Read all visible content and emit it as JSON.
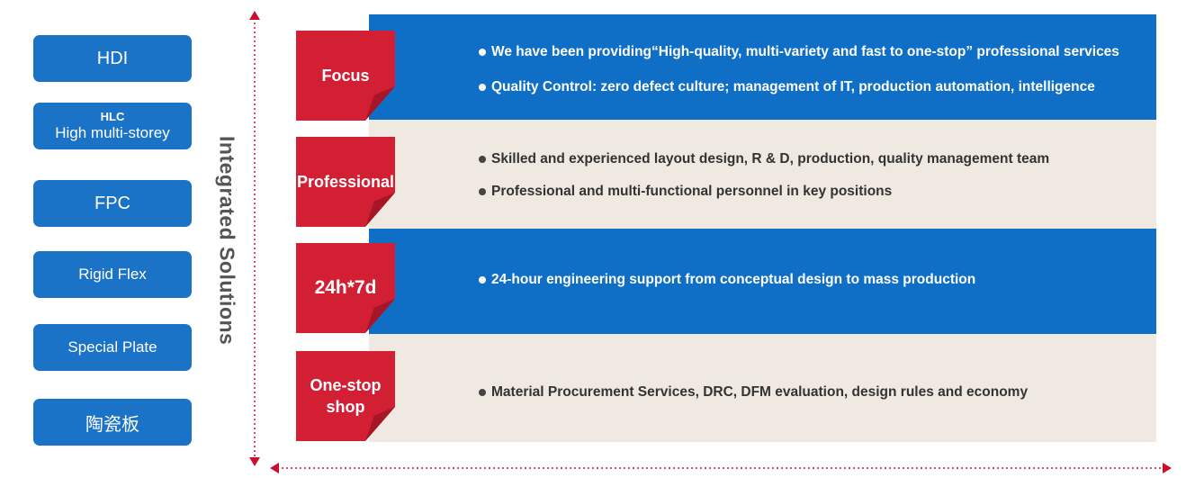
{
  "sidebar": {
    "items": [
      {
        "label": "HDI"
      },
      {
        "label": "HLC",
        "sublabel": "High multi-storey"
      },
      {
        "label": "FPC"
      },
      {
        "label": "Rigid Flex"
      },
      {
        "label": "Special Plate"
      },
      {
        "label": "陶瓷板"
      }
    ]
  },
  "vertical_title": "Integrated Solutions",
  "rows": [
    {
      "tag": "Focus",
      "bullets": [
        "We have been providing“High-quality, multi-variety and fast to one-stop”  professional services",
        "Quality Control: zero defect culture; management of IT, production automation, intelligence"
      ]
    },
    {
      "tag": "Professional",
      "bullets": [
        "Skilled and experienced layout design, R & D, production, quality management team",
        "Professional and multi-functional personnel in key positions"
      ]
    },
    {
      "tag": "24h*7d",
      "bullets": [
        "24-hour engineering support from conceptual design to mass production"
      ]
    },
    {
      "tag_line1": "One-stop",
      "tag_line2": "shop",
      "bullets": [
        "Material Procurement Services, DRC, DFM evaluation, design rules and economy"
      ]
    }
  ],
  "colors": {
    "button_blue": "#1a73c6",
    "band_blue": "#0f6fc6",
    "band_beige": "#efe9e1",
    "tag_red": "#d21f34",
    "arrow_red": "#c8102e"
  }
}
